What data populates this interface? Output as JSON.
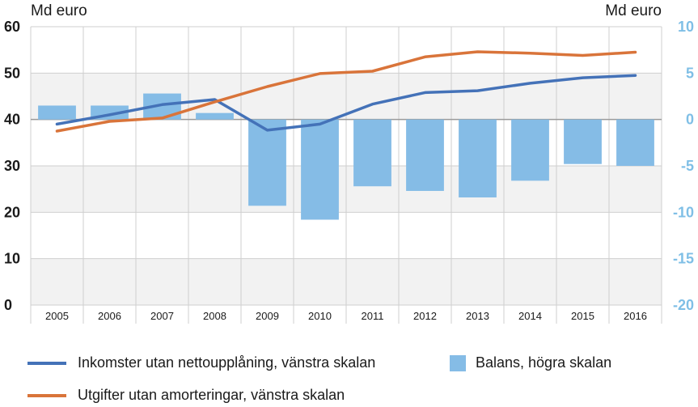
{
  "chart_data": {
    "type": "bar+line",
    "categories": [
      "2005",
      "2006",
      "2007",
      "2008",
      "2009",
      "2010",
      "2011",
      "2012",
      "2013",
      "2014",
      "2015",
      "2016"
    ],
    "left_axis": {
      "unit_label": "Md euro",
      "ylim": [
        0,
        60
      ],
      "ticks": [
        "0",
        "10",
        "20",
        "30",
        "40",
        "50",
        "60"
      ]
    },
    "right_axis": {
      "unit_label": "Md euro",
      "ylim": [
        -20,
        10
      ],
      "ticks": [
        "-20",
        "-15",
        "-10",
        "-5",
        "0",
        "5",
        "10"
      ]
    },
    "series": [
      {
        "name": "Inkomster utan nettoupplåning, vänstra skalan",
        "type": "line",
        "axis": "left",
        "color": "#4472b8",
        "values": [
          39.0,
          41.0,
          43.2,
          44.3,
          37.7,
          39.0,
          43.3,
          45.8,
          46.2,
          47.8,
          49.0,
          49.5
        ]
      },
      {
        "name": "Utgifter utan amorteringar, vänstra skalan",
        "type": "line",
        "axis": "left",
        "color": "#d9743a",
        "values": [
          37.5,
          39.6,
          40.3,
          43.8,
          47.1,
          49.9,
          50.4,
          53.5,
          54.6,
          54.3,
          53.8,
          54.5
        ]
      },
      {
        "name": "Balans, högra skalan",
        "type": "bar",
        "axis": "right",
        "color": "#85bce6",
        "values": [
          1.5,
          1.5,
          2.8,
          0.7,
          -9.3,
          -10.8,
          -7.2,
          -7.7,
          -8.4,
          -6.6,
          -4.8,
          -5.0
        ]
      }
    ],
    "grid": "horizontal",
    "legend_position": "bottom"
  },
  "legend": {
    "income_label": "Inkomster utan nettoupplåning, vänstra skalan",
    "expense_label": "Utgifter utan amorteringar, vänstra skalan",
    "balance_label": "Balans, högra skalan"
  }
}
